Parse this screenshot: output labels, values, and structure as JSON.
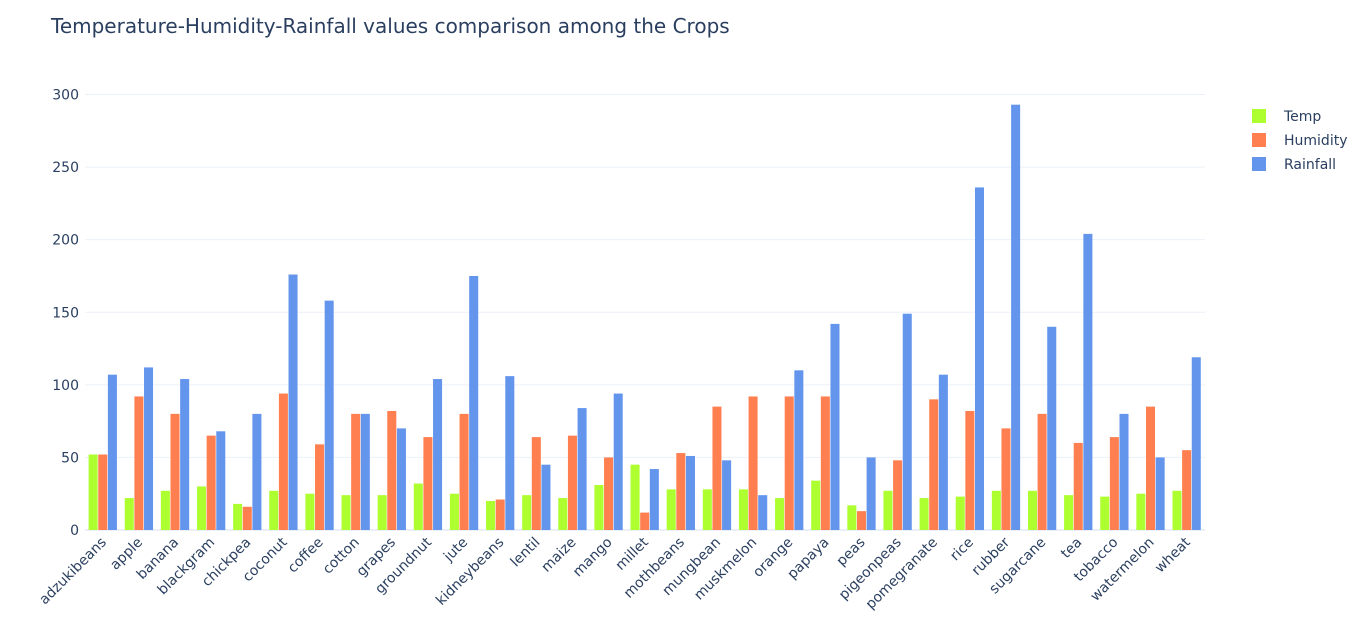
{
  "chart_data": {
    "type": "bar",
    "title": "Temperature-Humidity-Rainfall values comparison among the Crops",
    "xlabel": "",
    "ylabel": "",
    "ylim": [
      0,
      310
    ],
    "yticks": [
      0,
      50,
      100,
      150,
      200,
      250,
      300
    ],
    "grid": true,
    "legend_position": "top-right",
    "categories": [
      "adzukibeans",
      "apple",
      "banana",
      "blackgram",
      "chickpea",
      "coconut",
      "coffee",
      "cotton",
      "grapes",
      "groundnut",
      "jute",
      "kidneybeans",
      "lentil",
      "maize",
      "mango",
      "millet",
      "mothbeans",
      "mungbean",
      "muskmelon",
      "orange",
      "papaya",
      "peas",
      "pigeonpeas",
      "pomegranate",
      "rice",
      "rubber",
      "sugarcane",
      "tea",
      "tobacco",
      "watermelon",
      "wheat"
    ],
    "series": [
      {
        "name": "Temp",
        "color": "#adff2f",
        "values": [
          52,
          22,
          27,
          30,
          18,
          27,
          25,
          24,
          24,
          32,
          25,
          20,
          24,
          22,
          31,
          45,
          28,
          28,
          28,
          22,
          34,
          17,
          27,
          22,
          23,
          27,
          27,
          24,
          23,
          25,
          27
        ]
      },
      {
        "name": "Humidity",
        "color": "#ff7f50",
        "values": [
          52,
          92,
          80,
          65,
          16,
          94,
          59,
          80,
          82,
          64,
          80,
          21,
          64,
          65,
          50,
          12,
          53,
          85,
          92,
          92,
          92,
          13,
          48,
          90,
          82,
          70,
          80,
          60,
          64,
          85,
          55
        ]
      },
      {
        "name": "Rainfall",
        "color": "#6495ed",
        "values": [
          107,
          112,
          104,
          68,
          80,
          176,
          158,
          80,
          70,
          104,
          175,
          106,
          45,
          84,
          94,
          42,
          51,
          48,
          24,
          110,
          142,
          50,
          149,
          107,
          236,
          293,
          140,
          204,
          80,
          50,
          119
        ]
      }
    ]
  }
}
